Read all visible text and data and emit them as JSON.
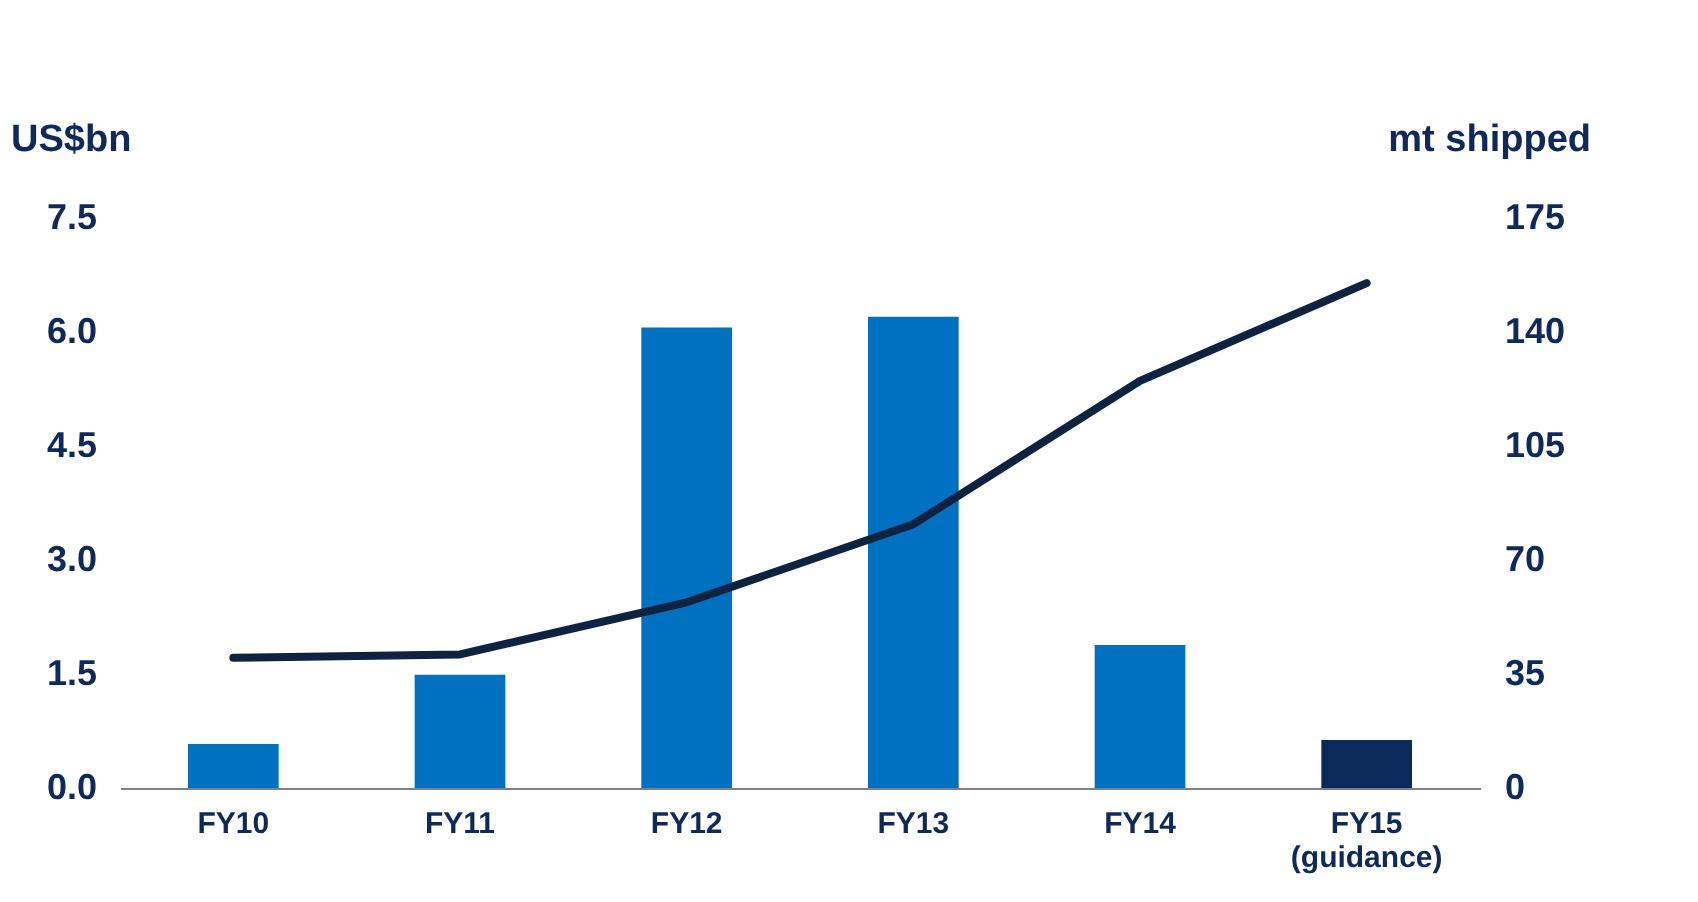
{
  "chart_data": {
    "type": "bar",
    "categories": [
      "FY10",
      "FY11",
      "FY12",
      "FY13",
      "FY14",
      "FY15 (guidance)"
    ],
    "ylabel": "US$bn",
    "y2label": "mt shipped",
    "series": [
      {
        "values": [
          0.58,
          1.49,
          6.06,
          6.2,
          1.88,
          0.63
        ],
        "colors": [
          "#0070c0",
          "#0070c0",
          "#0070c0",
          "#0070c0",
          "#0070c0",
          "#0a2a5c"
        ]
      },
      {
        "type": "line",
        "axis": "y2",
        "color": "#0d2340",
        "values": [
          40,
          41,
          57,
          81,
          125,
          155
        ]
      }
    ],
    "ylim": [
      0,
      7.5
    ],
    "yticks": [
      {
        "value": 0,
        "label": "0.0"
      },
      1.5,
      {
        "value": 3,
        "label": "3.0"
      },
      4.5,
      {
        "value": 6,
        "label": "6.0"
      },
      7.5
    ],
    "y2lim": [
      0,
      175
    ],
    "y2ticks": [
      0,
      35,
      70,
      105,
      140,
      175
    ],
    "grid": false
  }
}
